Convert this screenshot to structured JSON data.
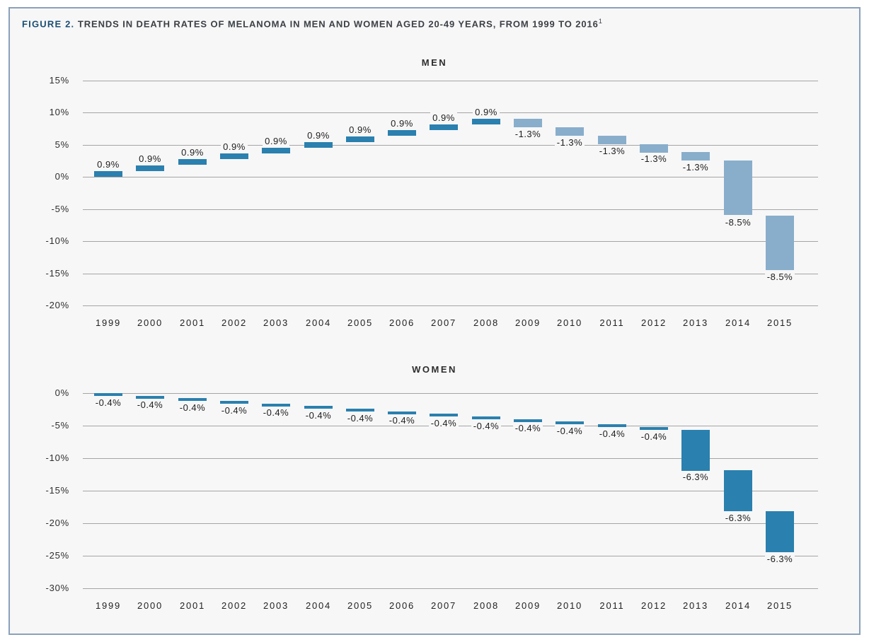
{
  "figure": {
    "label": "FIGURE 2.",
    "title": " TRENDS IN DEATH RATES OF MELANOMA IN MEN AND WOMEN AGED 20-49 YEARS, FROM 1999 TO 2016",
    "footnote_marker": "1"
  },
  "colors": {
    "dark_blue": "#2a80ae",
    "light_blue": "#88aecb",
    "figure_label_blue": "#1b4e74",
    "title_text": "#3c4045",
    "axis_text": "#2e2e2e",
    "bar_label_text": "#1d1d1d",
    "gridline": "#a5a5a5",
    "figure_background": "#f7f7f8",
    "figure_border": "#8aa0bb"
  },
  "chart_data": [
    {
      "type": "bar",
      "subtype": "waterfall",
      "title": "MEN",
      "categories": [
        "1999",
        "2000",
        "2001",
        "2002",
        "2003",
        "2004",
        "2005",
        "2006",
        "2007",
        "2008",
        "2009",
        "2010",
        "2011",
        "2012",
        "2013",
        "2014",
        "2015"
      ],
      "values": [
        0.9,
        0.9,
        0.9,
        0.9,
        0.9,
        0.9,
        0.9,
        0.9,
        0.9,
        0.9,
        -1.3,
        -1.3,
        -1.3,
        -1.3,
        -1.3,
        -8.5,
        -8.5
      ],
      "labels": [
        "0.9%",
        "0.9%",
        "0.9%",
        "0.9%",
        "0.9%",
        "0.9%",
        "0.9%",
        "0.9%",
        "0.9%",
        "0.9%",
        "-1.3%",
        "-1.3%",
        "-1.3%",
        "-1.3%",
        "-1.3%",
        "-8.5%",
        "-8.5%"
      ],
      "bar_color_keys": [
        "dark_blue",
        "dark_blue",
        "dark_blue",
        "dark_blue",
        "dark_blue",
        "dark_blue",
        "dark_blue",
        "dark_blue",
        "dark_blue",
        "dark_blue",
        "light_blue",
        "light_blue",
        "light_blue",
        "light_blue",
        "light_blue",
        "light_blue",
        "light_blue"
      ],
      "cumulative": [
        0.9,
        1.8,
        2.7,
        3.6,
        4.5,
        5.4,
        6.3,
        7.2,
        8.1,
        9.0,
        7.7,
        6.4,
        5.1,
        3.8,
        2.5,
        -6.0,
        -14.5
      ],
      "ylim": [
        -20,
        15
      ],
      "ytick_values": [
        15,
        10,
        5,
        0,
        -5,
        -10,
        -15,
        -20
      ],
      "ytick_labels": [
        "15%",
        "10%",
        "5%",
        "0%",
        "-5%",
        "-10%",
        "-15%",
        "-20%"
      ],
      "grid": true,
      "legend": "none"
    },
    {
      "type": "bar",
      "subtype": "waterfall",
      "title": "WOMEN",
      "categories": [
        "1999",
        "2000",
        "2001",
        "2002",
        "2003",
        "2004",
        "2005",
        "2006",
        "2007",
        "2008",
        "2009",
        "2010",
        "2011",
        "2012",
        "2013",
        "2014",
        "2015"
      ],
      "values": [
        -0.4,
        -0.4,
        -0.4,
        -0.4,
        -0.4,
        -0.4,
        -0.4,
        -0.4,
        -0.4,
        -0.4,
        -0.4,
        -0.4,
        -0.4,
        -0.4,
        -6.3,
        -6.3,
        -6.3
      ],
      "labels": [
        "-0.4%",
        "-0.4%",
        "-0.4%",
        "-0.4%",
        "-0.4%",
        "-0.4%",
        "-0.4%",
        "-0.4%",
        "-0.4%",
        "-0.4%",
        "-0.4%",
        "-0.4%",
        "-0.4%",
        "-0.4%",
        "-6.3%",
        "-6.3%",
        "-6.3%"
      ],
      "bar_color_keys": [
        "dark_blue",
        "dark_blue",
        "dark_blue",
        "dark_blue",
        "dark_blue",
        "dark_blue",
        "dark_blue",
        "dark_blue",
        "dark_blue",
        "dark_blue",
        "dark_blue",
        "dark_blue",
        "dark_blue",
        "dark_blue",
        "dark_blue",
        "dark_blue",
        "dark_blue"
      ],
      "cumulative": [
        -0.4,
        -0.8,
        -1.2,
        -1.6,
        -2.0,
        -2.4,
        -2.8,
        -3.2,
        -3.6,
        -4.0,
        -4.4,
        -4.8,
        -5.2,
        -5.6,
        -11.9,
        -18.2,
        -24.5
      ],
      "ylim": [
        -30,
        0
      ],
      "ytick_values": [
        0,
        -5,
        -10,
        -15,
        -20,
        -25,
        -30
      ],
      "ytick_labels": [
        "0%",
        "-5%",
        "-10%",
        "-15%",
        "-20%",
        "-25%",
        "-30%"
      ],
      "grid": true,
      "legend": "none"
    }
  ]
}
